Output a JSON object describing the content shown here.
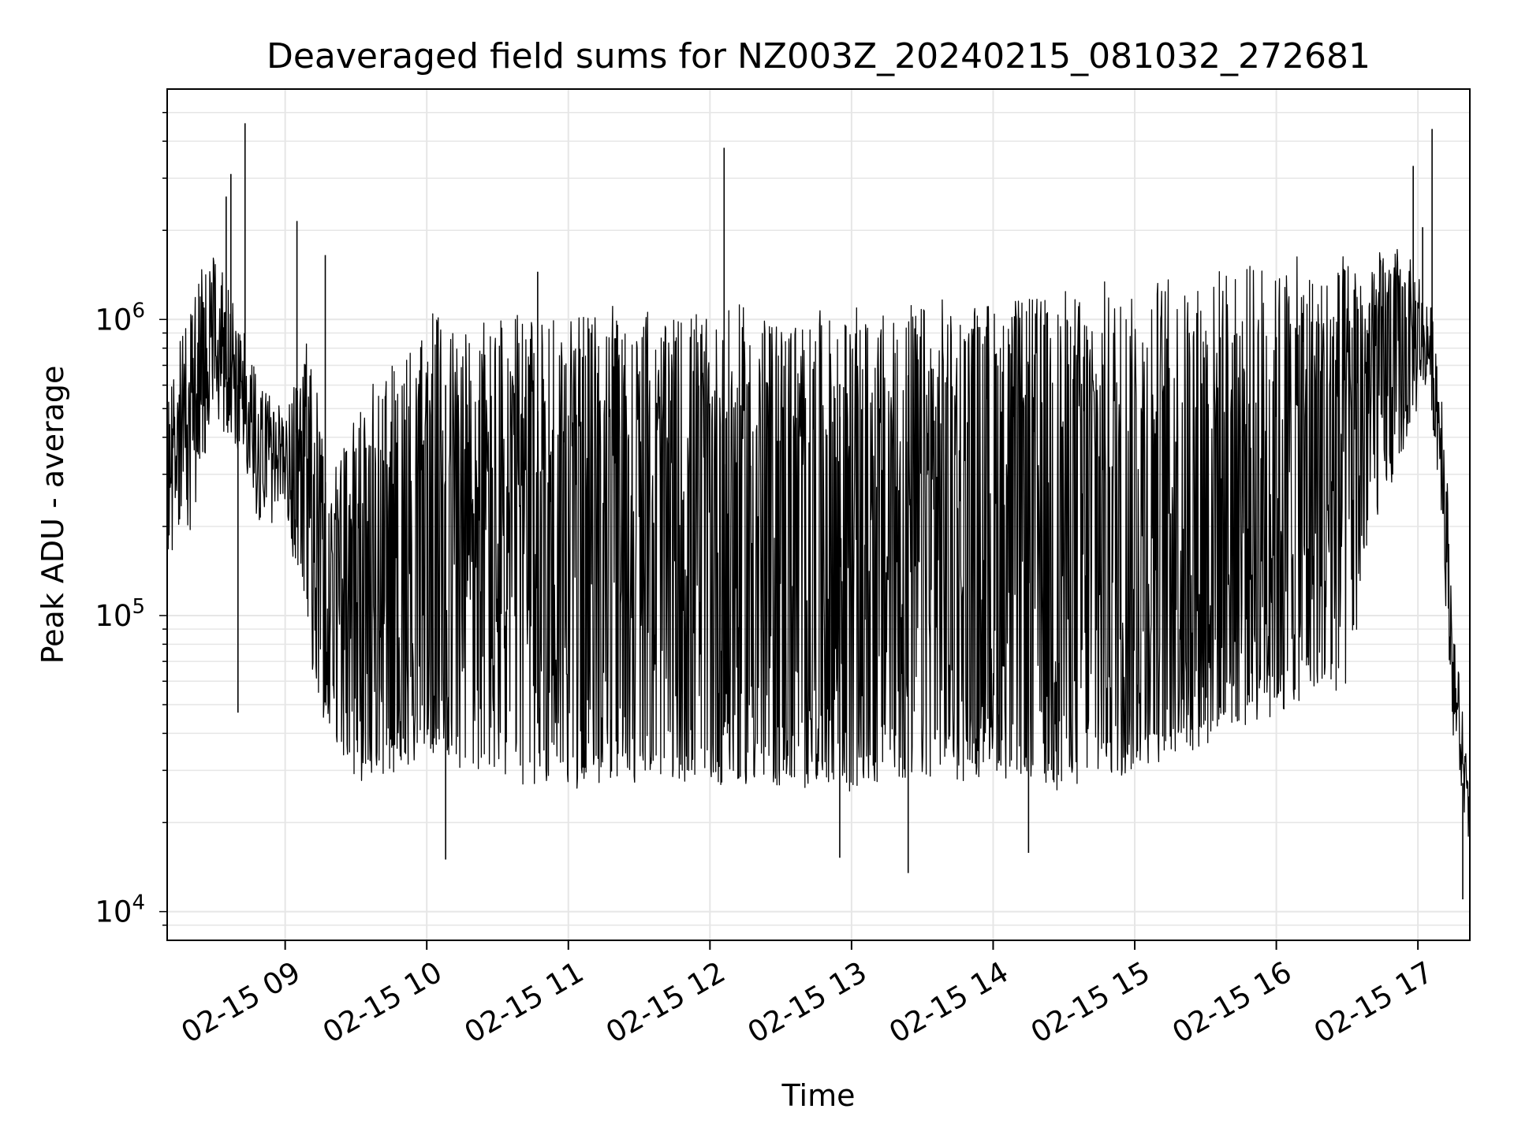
{
  "chart_data": {
    "type": "line",
    "title": "Deaveraged field sums for NZ003Z_20240215_081032_272681",
    "xlabel": "Time",
    "ylabel": "Peak ADU - average",
    "y_scale": "log",
    "ylim": [
      8000,
      6000000
    ],
    "xlim": [
      "2024-02-15 08:10",
      "2024-02-15 17:22"
    ],
    "grid": true,
    "line_color": "#000000",
    "x_ticks": [
      {
        "t": "2024-02-15 09:00",
        "label": "02-15 09"
      },
      {
        "t": "2024-02-15 10:00",
        "label": "02-15 10"
      },
      {
        "t": "2024-02-15 11:00",
        "label": "02-15 11"
      },
      {
        "t": "2024-02-15 12:00",
        "label": "02-15 12"
      },
      {
        "t": "2024-02-15 13:00",
        "label": "02-15 13"
      },
      {
        "t": "2024-02-15 14:00",
        "label": "02-15 14"
      },
      {
        "t": "2024-02-15 15:00",
        "label": "02-15 15"
      },
      {
        "t": "2024-02-15 16:00",
        "label": "02-15 16"
      },
      {
        "t": "2024-02-15 17:00",
        "label": "02-15 17"
      }
    ],
    "y_ticks": [
      {
        "value": 10000,
        "base": "10",
        "exp": "4"
      },
      {
        "value": 100000,
        "base": "10",
        "exp": "5"
      },
      {
        "value": 1000000,
        "base": "10",
        "exp": "6"
      }
    ],
    "envelope": {
      "times": [
        "2024-02-15 08:10",
        "2024-02-15 08:20",
        "2024-02-15 08:30",
        "2024-02-15 08:40",
        "2024-02-15 08:50",
        "2024-02-15 09:00",
        "2024-02-15 09:10",
        "2024-02-15 09:20",
        "2024-02-15 09:30",
        "2024-02-15 09:40",
        "2024-02-15 10:00",
        "2024-02-15 10:30",
        "2024-02-15 11:00",
        "2024-02-15 11:30",
        "2024-02-15 12:00",
        "2024-02-15 12:30",
        "2024-02-15 13:00",
        "2024-02-15 13:30",
        "2024-02-15 14:00",
        "2024-02-15 14:30",
        "2024-02-15 15:00",
        "2024-02-15 15:30",
        "2024-02-15 16:00",
        "2024-02-15 16:30",
        "2024-02-15 16:40",
        "2024-02-15 16:50",
        "2024-02-15 17:00",
        "2024-02-15 17:05",
        "2024-02-15 17:10",
        "2024-02-15 17:15",
        "2024-02-15 17:22"
      ],
      "low": [
        150000,
        200000,
        500000,
        350000,
        200000,
        250000,
        70000,
        40000,
        30000,
        30000,
        35000,
        30000,
        28000,
        30000,
        28000,
        28000,
        27000,
        30000,
        30000,
        28000,
        32000,
        40000,
        50000,
        60000,
        200000,
        300000,
        500000,
        600000,
        200000,
        40000,
        15000
      ],
      "high": [
        600000,
        1200000,
        1800000,
        1000000,
        600000,
        500000,
        800000,
        300000,
        500000,
        600000,
        1000000,
        1000000,
        1100000,
        1000000,
        1050000,
        1050000,
        1000000,
        1100000,
        1150000,
        1200000,
        1300000,
        1400000,
        1500000,
        1550000,
        1600000,
        1700000,
        1500000,
        1100000,
        800000,
        100000,
        25000
      ]
    },
    "spikes": [
      {
        "t": "2024-02-15 08:43",
        "value": 4600000
      },
      {
        "t": "2024-02-15 08:37",
        "value": 3100000
      },
      {
        "t": "2024-02-15 08:35",
        "value": 2600000
      },
      {
        "t": "2024-02-15 09:05",
        "value": 2150000
      },
      {
        "t": "2024-02-15 12:06",
        "value": 3800000
      },
      {
        "t": "2024-02-15 16:58",
        "value": 3300000
      },
      {
        "t": "2024-02-15 17:06",
        "value": 4400000
      },
      {
        "t": "2024-02-15 17:02",
        "value": 2050000
      },
      {
        "t": "2024-02-15 09:17",
        "value": 1650000
      },
      {
        "t": "2024-02-15 10:47",
        "value": 1450000
      }
    ],
    "dips": [
      {
        "t": "2024-02-15 08:40",
        "value": 47000
      },
      {
        "t": "2024-02-15 10:08",
        "value": 15000
      },
      {
        "t": "2024-02-15 13:24",
        "value": 13500
      },
      {
        "t": "2024-02-15 12:55",
        "value": 15200
      },
      {
        "t": "2024-02-15 14:15",
        "value": 15800
      },
      {
        "t": "2024-02-15 17:19",
        "value": 11000
      }
    ]
  }
}
